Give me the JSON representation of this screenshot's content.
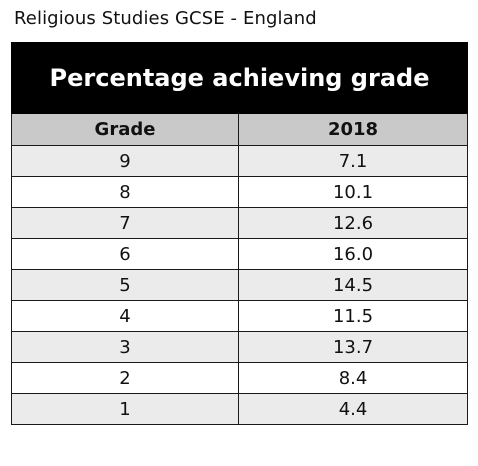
{
  "subtitle": "Religious Studies GCSE - England",
  "chart_data": {
    "type": "table",
    "title": "Percentage achieving grade",
    "columns": [
      "Grade",
      "2018"
    ],
    "rows": [
      [
        "9",
        "7.1"
      ],
      [
        "8",
        "10.1"
      ],
      [
        "7",
        "12.6"
      ],
      [
        "6",
        "16.0"
      ],
      [
        "5",
        "14.5"
      ],
      [
        "4",
        "11.5"
      ],
      [
        "3",
        "13.7"
      ],
      [
        "2",
        "8.4"
      ],
      [
        "1",
        "4.4"
      ]
    ]
  },
  "colors": {
    "title_background": "#000000",
    "title_text": "#ffffff",
    "header_background": "#c9c9c9",
    "row_shade": "#ebebeb",
    "row_plain": "#ffffff"
  }
}
